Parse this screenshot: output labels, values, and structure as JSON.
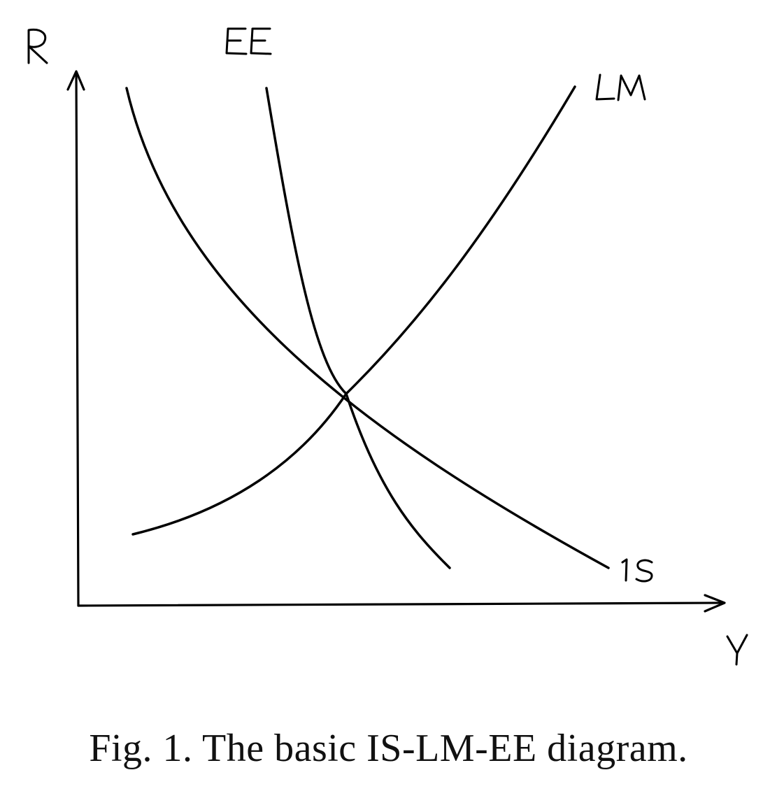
{
  "diagram": {
    "axes": {
      "y_label": "R",
      "x_label": "Y"
    },
    "curves": [
      {
        "id": "ee",
        "label": "EE"
      },
      {
        "id": "lm",
        "label": "LM"
      },
      {
        "id": "is",
        "label": "IS"
      }
    ]
  },
  "caption": "Fig. 1. The basic IS-LM-EE diagram."
}
